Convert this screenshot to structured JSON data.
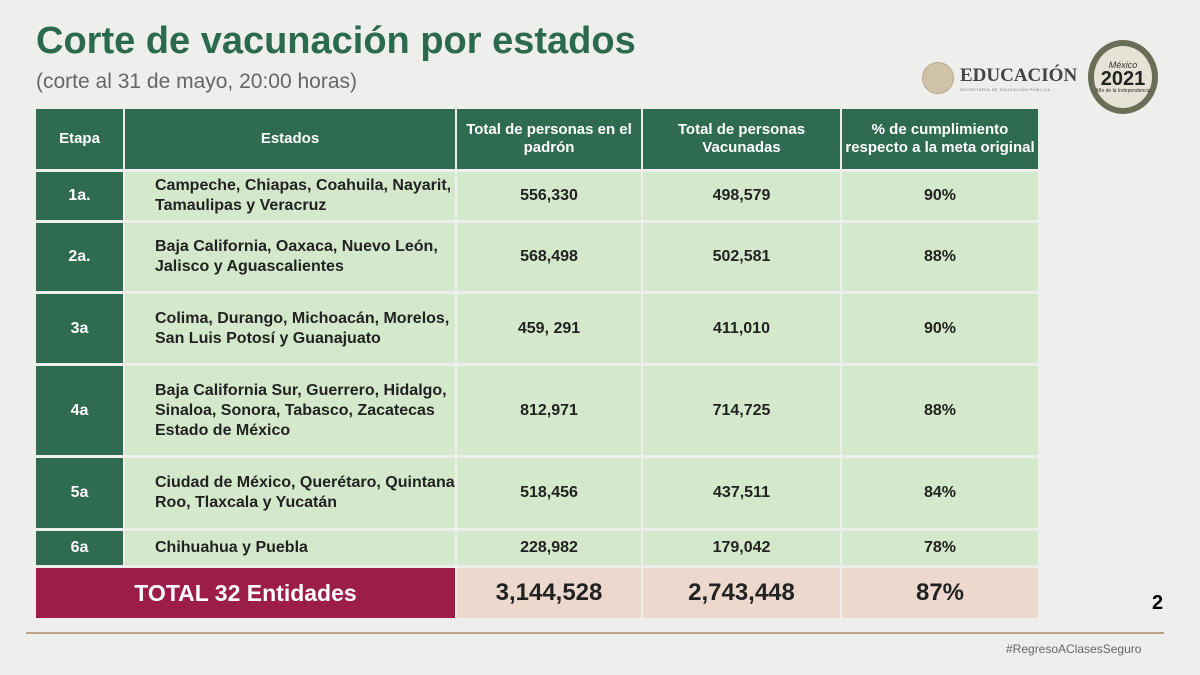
{
  "title": "Corte de vacunación por estados",
  "subtitle": "(corte al 31 de mayo, 20:00 horas)",
  "logos": {
    "educacion": "EDUCACIÓN",
    "educacion_sub": "SECRETARÍA DE EDUCACIÓN PÚBLICA",
    "mexico": "México",
    "year": "2021",
    "year_sub": "Año de la Independencia"
  },
  "table": {
    "headers": [
      "Etapa",
      "Estados",
      "Total de personas en el padrón",
      "Total de personas Vacunadas",
      "% de cumplimiento respecto a la meta original"
    ],
    "rows": [
      {
        "etapa": "1a.",
        "estados": "Campeche, Chiapas, Coahuila, Nayarit, Tamaulipas y Veracruz",
        "padron": "556,330",
        "vacunadas": "498,579",
        "pct": "90%"
      },
      {
        "etapa": "2a.",
        "estados": "Baja California, Oaxaca, Nuevo León, Jalisco y Aguascalientes",
        "padron": "568,498",
        "vacunadas": "502,581",
        "pct": "88%"
      },
      {
        "etapa": "3a",
        "estados": "Colima, Durango, Michoacán, Morelos, San Luis Potosí y Guanajuato",
        "padron": "459, 291",
        "vacunadas": "411,010",
        "pct": "90%"
      },
      {
        "etapa": "4a",
        "estados": "Baja California Sur, Guerrero, Hidalgo, Sinaloa, Sonora, Tabasco, Zacatecas Estado de México",
        "padron": "812,971",
        "vacunadas": "714,725",
        "pct": "88%"
      },
      {
        "etapa": "5a",
        "estados": "Ciudad de México, Querétaro, Quintana Roo, Tlaxcala y Yucatán",
        "padron": "518,456",
        "vacunadas": "437,511",
        "pct": "84%"
      },
      {
        "etapa": "6a",
        "estados": "Chihuahua y Puebla",
        "padron": "228,982",
        "vacunadas": "179,042",
        "pct": "78%"
      }
    ],
    "total": {
      "label": "TOTAL 32 Entidades",
      "padron": "3,144,528",
      "vacunadas": "2,743,448",
      "pct": "87%"
    }
  },
  "page_number": "2",
  "hashtag": "#RegresoAClasesSeguro"
}
